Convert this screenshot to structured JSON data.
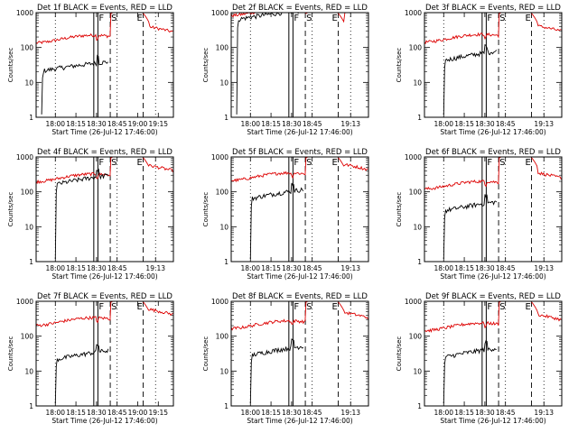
{
  "chart_data": {
    "type": "line",
    "panel_titles": [
      "Det 1f BLACK = Events, RED = LLD",
      "Det 2f BLACK = Events, RED = LLD",
      "Det 3f BLACK = Events, RED = LLD",
      "Det 4f BLACK = Events, RED = LLD",
      "Det 5f BLACK = Events, RED = LLD",
      "Det 6f BLACK = Events, RED = LLD",
      "Det 7f BLACK = Events, RED = LLD",
      "Det 8f BLACK = Events, RED = LLD",
      "Det 9f BLACK = Events, RED = LLD"
    ],
    "xlabel": "Start Time (26-Jul-12 17:46:00)",
    "ylabel": "Counts/sec",
    "yscale": "log",
    "ylim": [
      1,
      1000
    ],
    "ytick_labels": [
      "1",
      "10",
      "100",
      "1000"
    ],
    "x_minutes_range": [
      0,
      100
    ],
    "xtick_labels_wide": [
      "18:00",
      "18:15",
      "18:30",
      "18:45",
      "19:00",
      "19:15"
    ],
    "xtick_labels_narrow": [
      "18:00",
      "18:15",
      "18:30",
      "18:45",
      "19:13"
    ],
    "marker_labels": [
      "F",
      "S",
      "E"
    ],
    "panels": [
      {
        "det": "1f",
        "events_start": 4,
        "events_level": 30,
        "lld_level": 180,
        "wide_axis": true
      },
      {
        "det": "2f",
        "events_start": 4,
        "events_level": 900,
        "lld_level": 1100,
        "wide_axis": false
      },
      {
        "det": "3f",
        "events_start": 14,
        "events_level": 60,
        "lld_level": 190,
        "wide_axis": false
      },
      {
        "det": "4f",
        "events_start": 14,
        "events_level": 230,
        "lld_level": 260,
        "wide_axis": false
      },
      {
        "det": "5f",
        "events_start": 14,
        "events_level": 90,
        "lld_level": 280,
        "wide_axis": false
      },
      {
        "det": "6f",
        "events_start": 14,
        "events_level": 40,
        "lld_level": 160,
        "wide_axis": false
      },
      {
        "det": "7f",
        "events_start": 14,
        "events_level": 30,
        "lld_level": 270,
        "wide_axis": true
      },
      {
        "det": "8f",
        "events_start": 14,
        "events_level": 40,
        "lld_level": 220,
        "wide_axis": false
      },
      {
        "det": "9f",
        "events_start": 14,
        "events_level": 35,
        "lld_level": 190,
        "wide_axis": false
      }
    ],
    "colors": {
      "events": "#000000",
      "lld": "#dd0000"
    }
  }
}
